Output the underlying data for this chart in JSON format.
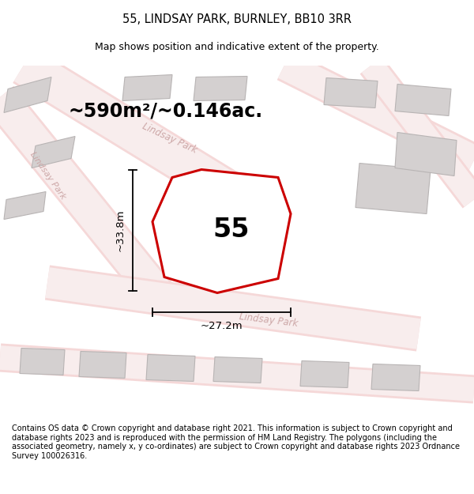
{
  "title": "55, LINDSAY PARK, BURNLEY, BB10 3RR",
  "subtitle": "Map shows position and indicative extent of the property.",
  "footer": "Contains OS data © Crown copyright and database right 2021. This information is subject to Crown copyright and database rights 2023 and is reproduced with the permission of HM Land Registry. The polygons (including the associated geometry, namely x, y co-ordinates) are subject to Crown copyright and database rights 2023 Ordnance Survey 100026316.",
  "area_label": "~590m²/~0.146ac.",
  "number_label": "55",
  "dim_width": "~27.2m",
  "dim_height": "~33.8m",
  "map_bg": "#eeebeb",
  "road_fill": "#f5d8d8",
  "road_edge": "#e8b0b0",
  "bld_fc": "#d4d0d0",
  "bld_ec": "#b8b4b4",
  "plot_ec": "#cc0000",
  "road_label_color": "#c8a0a0",
  "title_fontsize": 10.5,
  "subtitle_fontsize": 9,
  "footer_fontsize": 7,
  "area_fontsize": 17,
  "number_fontsize": 24,
  "dim_fontsize": 9.5
}
